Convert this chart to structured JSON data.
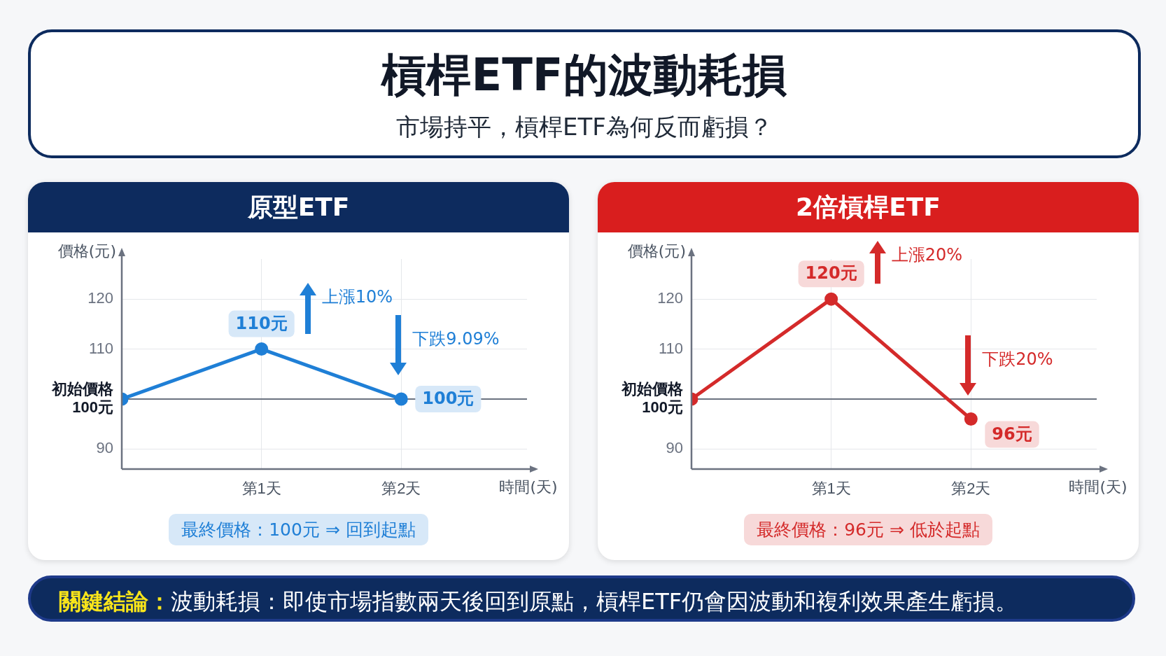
{
  "chart_data": [
    {
      "type": "other",
      "title": "槓桿ETF的波動耗損",
      "subtitle": "市場持平，槓桿ETF為何反而虧損？"
    },
    {
      "type": "line",
      "title": "原型ETF",
      "xlabel": "時間(天)",
      "ylabel": "價格(元)",
      "categories": [
        null,
        "第1天",
        "第2天"
      ],
      "series": [
        {
          "color": "#1f7fd6",
          "values": [
            100,
            110,
            100
          ]
        }
      ],
      "ylim": [
        86,
        128
      ],
      "yticks": [
        90,
        {
          "value": 100,
          "label": "初始價格 100元"
        },
        110,
        120
      ],
      "grid": true,
      "marker": "circle",
      "ref_lines": [
        {
          "axis": "y",
          "value": 100,
          "color": "#6b7280"
        }
      ],
      "annotations": [
        {
          "text": "110元",
          "x": "第1天",
          "y": 110
        },
        {
          "text": "100元",
          "x": "第2天",
          "y": 100
        },
        "上漲10%",
        "下跌9.09%",
        "最終價格：100元 ⇒ 回到起點"
      ]
    },
    {
      "type": "line",
      "title": "2倍槓桿ETF",
      "xlabel": "時間(天)",
      "ylabel": "價格(元)",
      "categories": [
        null,
        "第1天",
        "第2天"
      ],
      "series": [
        {
          "color": "#d42a2a",
          "values": [
            100,
            120,
            96
          ]
        }
      ],
      "ylim": [
        86,
        128
      ],
      "yticks": [
        90,
        {
          "value": 100,
          "label": "初始價格 100元"
        },
        110,
        120
      ],
      "grid": true,
      "marker": "circle",
      "ref_lines": [
        {
          "axis": "y",
          "value": 100,
          "color": "#6b7280"
        }
      ],
      "annotations": [
        {
          "text": "120元",
          "x": "第1天",
          "y": 120
        },
        {
          "text": "96元",
          "x": "第2天",
          "y": 96
        },
        "上漲20%",
        "下跌20%",
        "最終價格：96元 ⇒ 低於起點"
      ]
    },
    {
      "type": "other",
      "annotations": [
        "關鍵結論：",
        "波動耗損：即使市場指數兩天後回到原點，槓桿ETF仍會因波動和複利效果產生虧損。"
      ]
    }
  ]
}
